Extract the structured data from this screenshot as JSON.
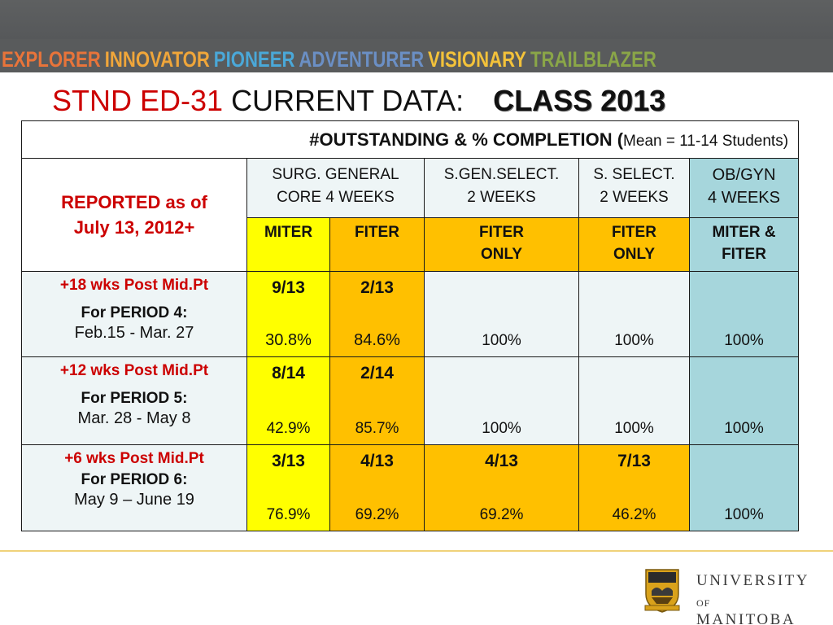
{
  "banner": {
    "words": [
      {
        "text": "EXPLORER",
        "color": "#e8743a"
      },
      {
        "text": "INNOVATOR",
        "color": "#f0a63a"
      },
      {
        "text": "PIONEER",
        "color": "#4aa8d8"
      },
      {
        "text": "ADVENTURER",
        "color": "#6b8fc4"
      },
      {
        "text": "VISIONARY",
        "color": "#f3c23a"
      },
      {
        "text": "TRAILBLAZER",
        "color": "#8aa648"
      }
    ]
  },
  "title": {
    "red": "STND ED-31",
    "black": "CURRENT DATA:",
    "class": "CLASS 2013"
  },
  "table": {
    "header_main": "#OUTSTANDING & % COMPLETION  (",
    "header_small": "Mean = 11-14 Students)",
    "reported": [
      "REPORTED as of",
      "July 13, 2012+"
    ],
    "columns": [
      {
        "line1": "SURG. GENERAL",
        "line2": "CORE 4 WEEKS"
      },
      {
        "line1": "S.GEN.SELECT.",
        "line2": "2 WEEKS"
      },
      {
        "line1": "S. SELECT.",
        "line2": "2 WEEKS"
      },
      {
        "line1": "OB/GYN",
        "line2": "4 WEEKS"
      }
    ],
    "sub_headers": [
      {
        "line1": "MITER",
        "line2": ""
      },
      {
        "line1": "FITER",
        "line2": ""
      },
      {
        "line1": "FITER",
        "line2": "ONLY"
      },
      {
        "line1": "FITER",
        "line2": "ONLY"
      },
      {
        "line1": "MITER &",
        "line2": "FITER"
      }
    ],
    "rows": [
      {
        "window": "+18 wks Post Mid.Pt",
        "period": "For PERIOD 4:",
        "dates": "Feb.15 - Mar. 27",
        "cells": [
          {
            "frac": "9/13",
            "pct": "30.8%"
          },
          {
            "frac": "2/13",
            "pct": "84.6%"
          },
          {
            "frac": "",
            "pct": "100%"
          },
          {
            "frac": "",
            "pct": "100%"
          },
          {
            "frac": "",
            "pct": "100%"
          }
        ]
      },
      {
        "window": "+12 wks Post Mid.Pt",
        "period": "For PERIOD 5:",
        "dates": "Mar. 28 - May 8",
        "cells": [
          {
            "frac": "8/14",
            "pct": "42.9%"
          },
          {
            "frac": "2/14",
            "pct": "85.7%"
          },
          {
            "frac": "",
            "pct": "100%"
          },
          {
            "frac": "",
            "pct": "100%"
          },
          {
            "frac": "",
            "pct": "100%"
          }
        ]
      },
      {
        "window": "+6 wks Post Mid.Pt",
        "period": "For PERIOD 6:",
        "dates": "May 9 – June 19",
        "cells": [
          {
            "frac": "3/13",
            "pct": "76.9%"
          },
          {
            "frac": "4/13",
            "pct": "69.2%"
          },
          {
            "frac": "4/13",
            "pct": "69.2%"
          },
          {
            "frac": "7/13",
            "pct": "46.2%"
          },
          {
            "frac": "",
            "pct": "100%"
          }
        ]
      }
    ]
  },
  "logo": {
    "line1": "UNIVERSITY",
    "of": "OF",
    "line2": "MANITOBA"
  },
  "colors": {
    "accent_red": "#cc0000",
    "yellow": "#ffff00",
    "orange": "#ffc000",
    "blue": "#a6d6dc",
    "light": "#eef5f6"
  }
}
